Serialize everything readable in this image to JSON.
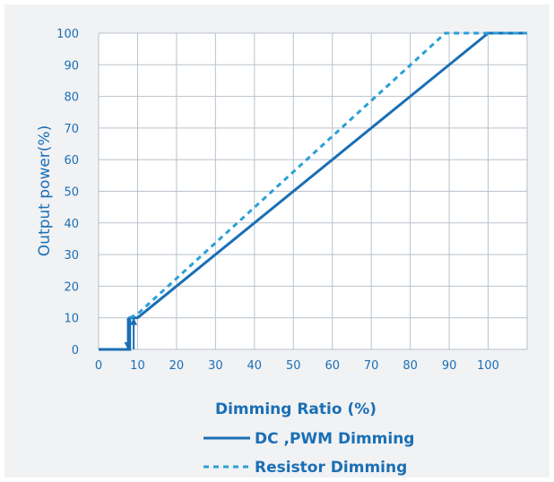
{
  "chart_data": {
    "type": "line",
    "xlabel": "Dimming Ratio (%)",
    "ylabel": "Output power(%)",
    "xlim": [
      0,
      110
    ],
    "ylim": [
      0,
      100
    ],
    "x_ticks": [
      0,
      10,
      20,
      30,
      40,
      50,
      60,
      70,
      80,
      90,
      100
    ],
    "y_ticks": [
      0,
      10,
      20,
      30,
      40,
      50,
      60,
      70,
      80,
      90,
      100
    ],
    "grid": true,
    "legend_position": "bottom",
    "series": [
      {
        "name": "DC ,PWM Dimming",
        "style": "solid",
        "color": "#1a6fb5",
        "points": [
          [
            0,
            0
          ],
          [
            8,
            0
          ],
          [
            8,
            10
          ],
          [
            10,
            10
          ],
          [
            100,
            100
          ],
          [
            110,
            100
          ]
        ]
      },
      {
        "name": "Resistor Dimming",
        "style": "dashed",
        "color": "#2b9fd6",
        "points": [
          [
            8,
            10
          ],
          [
            10,
            11.2
          ],
          [
            89,
            100
          ],
          [
            110,
            100
          ]
        ]
      }
    ],
    "arrows": [
      {
        "direction": "down",
        "x": 7.5,
        "from_y": 10,
        "to_y": 0
      },
      {
        "direction": "up",
        "x": 9,
        "from_y": 0,
        "to_y": 10
      }
    ]
  }
}
